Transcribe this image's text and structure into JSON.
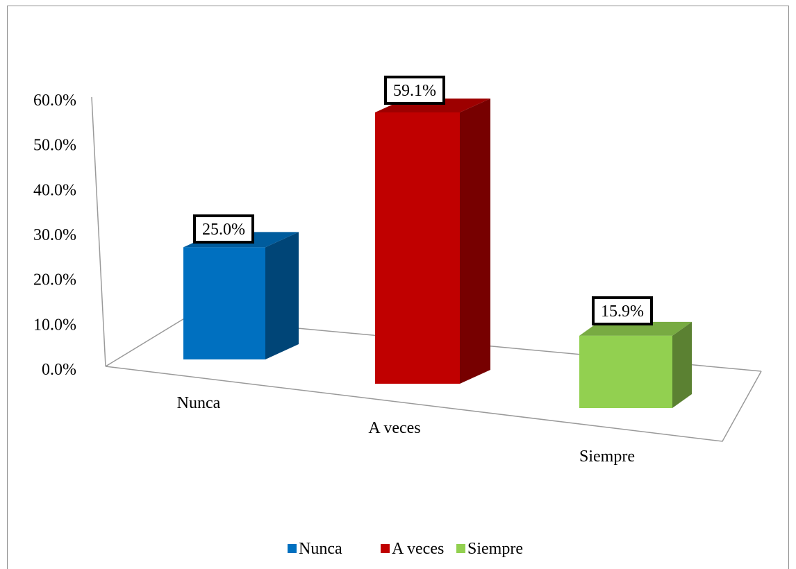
{
  "chart_data": {
    "type": "bar",
    "style": "3d-column",
    "categories": [
      "Nunca",
      "A veces",
      "Siempre"
    ],
    "values": [
      25.0,
      59.1,
      15.9
    ],
    "value_labels": [
      "25.0%",
      "59.1%",
      "15.9%"
    ],
    "colors": [
      "#0070C0",
      "#C00000",
      "#92D050"
    ],
    "yticks": [
      "0.0%",
      "10.0%",
      "20.0%",
      "30.0%",
      "40.0%",
      "50.0%",
      "60.0%"
    ],
    "ylim": [
      0,
      60
    ],
    "grid": false,
    "legend_position": "bottom",
    "legend": [
      "Nunca",
      "A veces",
      "Siempre"
    ]
  }
}
